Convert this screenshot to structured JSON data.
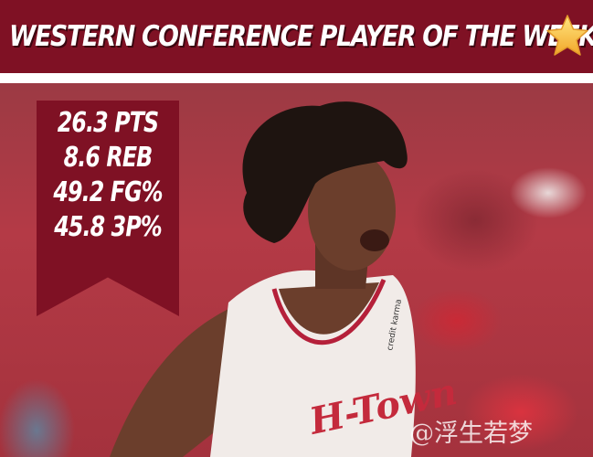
{
  "header": {
    "title": "WESTERN CONFERENCE PLAYER OF THE WEEK",
    "icon": "star-emoji"
  },
  "stats": [
    {
      "label": "26.3 PTS"
    },
    {
      "label": "8.6 REB"
    },
    {
      "label": "49.2 FG%"
    },
    {
      "label": "45.8 3P%"
    }
  ],
  "jersey": {
    "wordmark": "H-Town",
    "sponsor": "credit karma"
  },
  "watermark": "@浮生若梦",
  "colors": {
    "brand": "#7f1124",
    "jersey": "#f2ecea",
    "trim": "#b5203a"
  }
}
